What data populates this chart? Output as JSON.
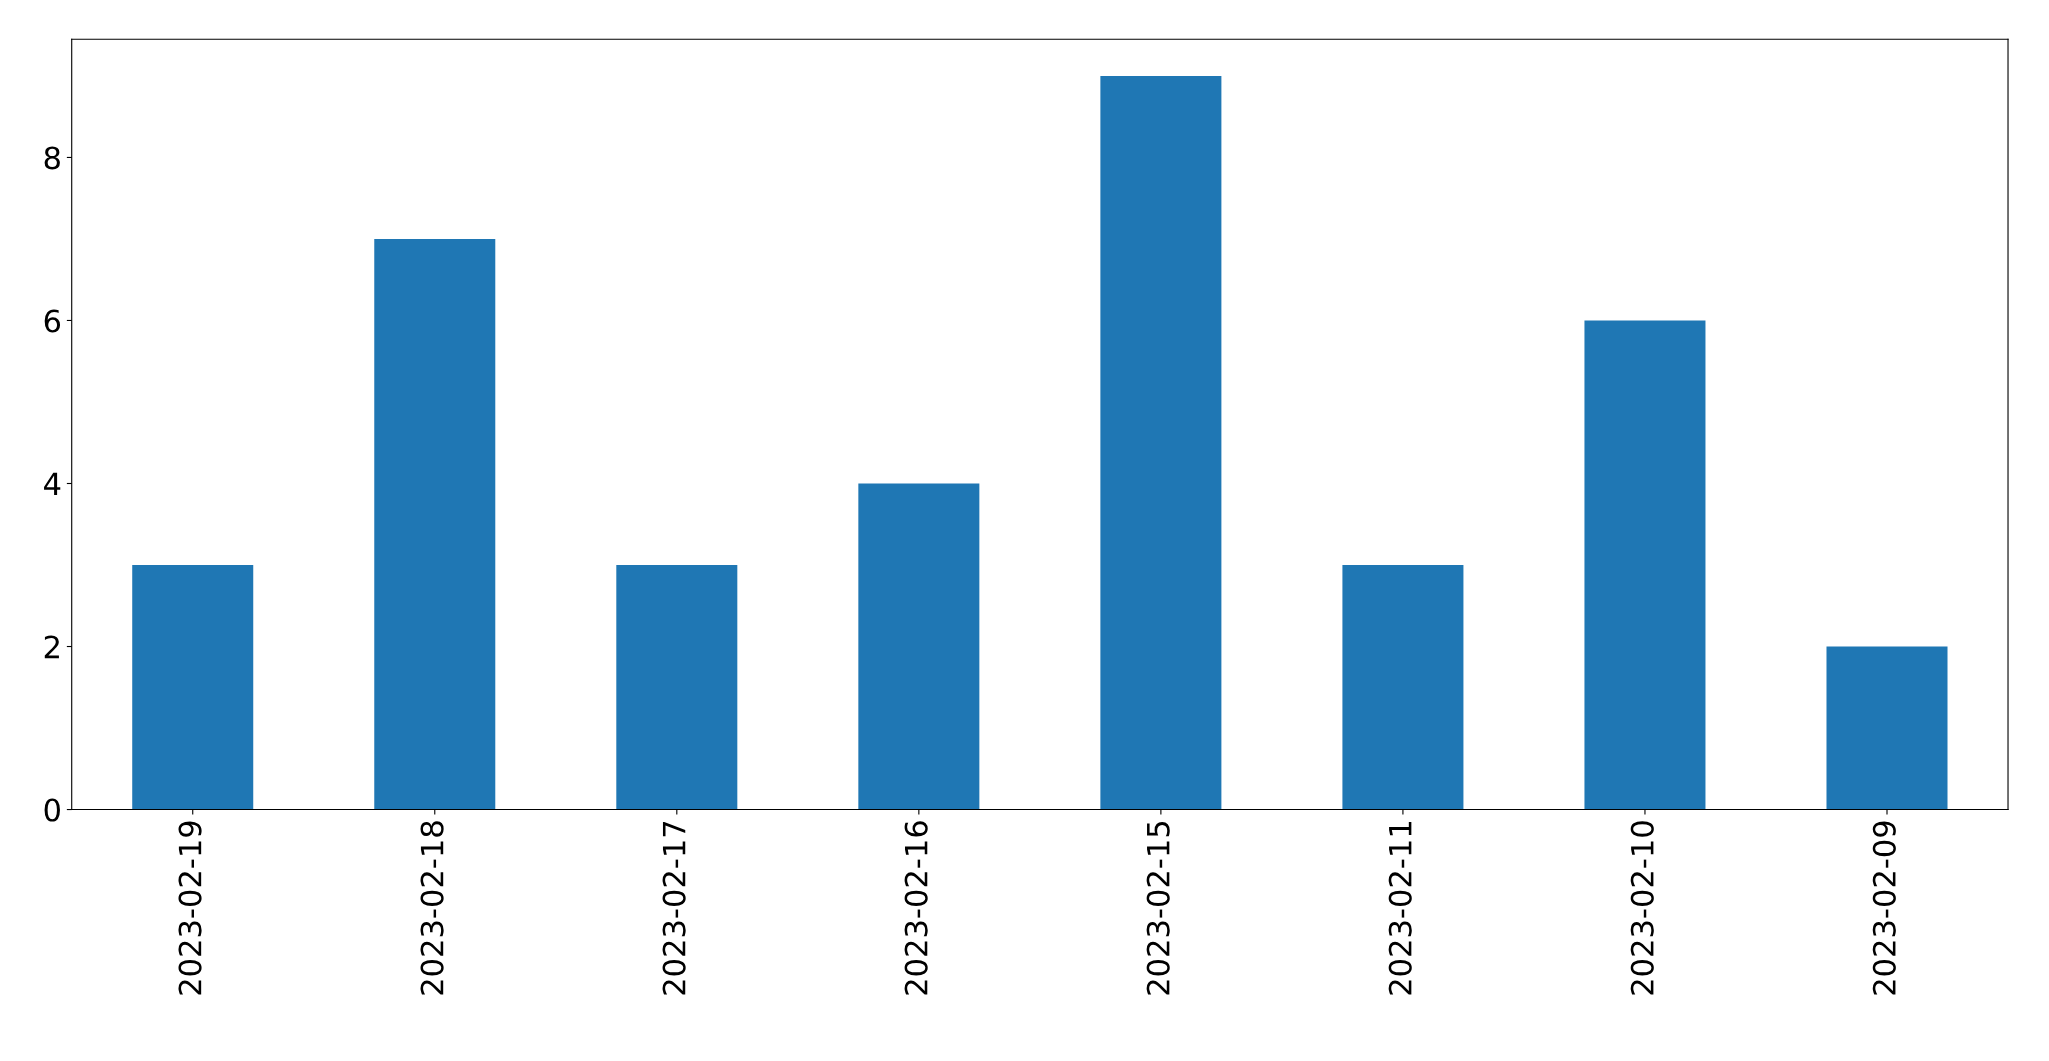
{
  "chart_data": {
    "type": "bar",
    "categories": [
      "2023-02-19",
      "2023-02-18",
      "2023-02-17",
      "2023-02-16",
      "2023-02-15",
      "2023-02-11",
      "2023-02-10",
      "2023-02-09"
    ],
    "values": [
      3,
      7,
      3,
      4,
      9,
      3,
      6,
      2
    ],
    "color": "#1f77b4",
    "ylim": [
      0,
      9.45
    ],
    "yticks": [
      0,
      2,
      4,
      6,
      8
    ],
    "grid": false,
    "legend": false
  }
}
